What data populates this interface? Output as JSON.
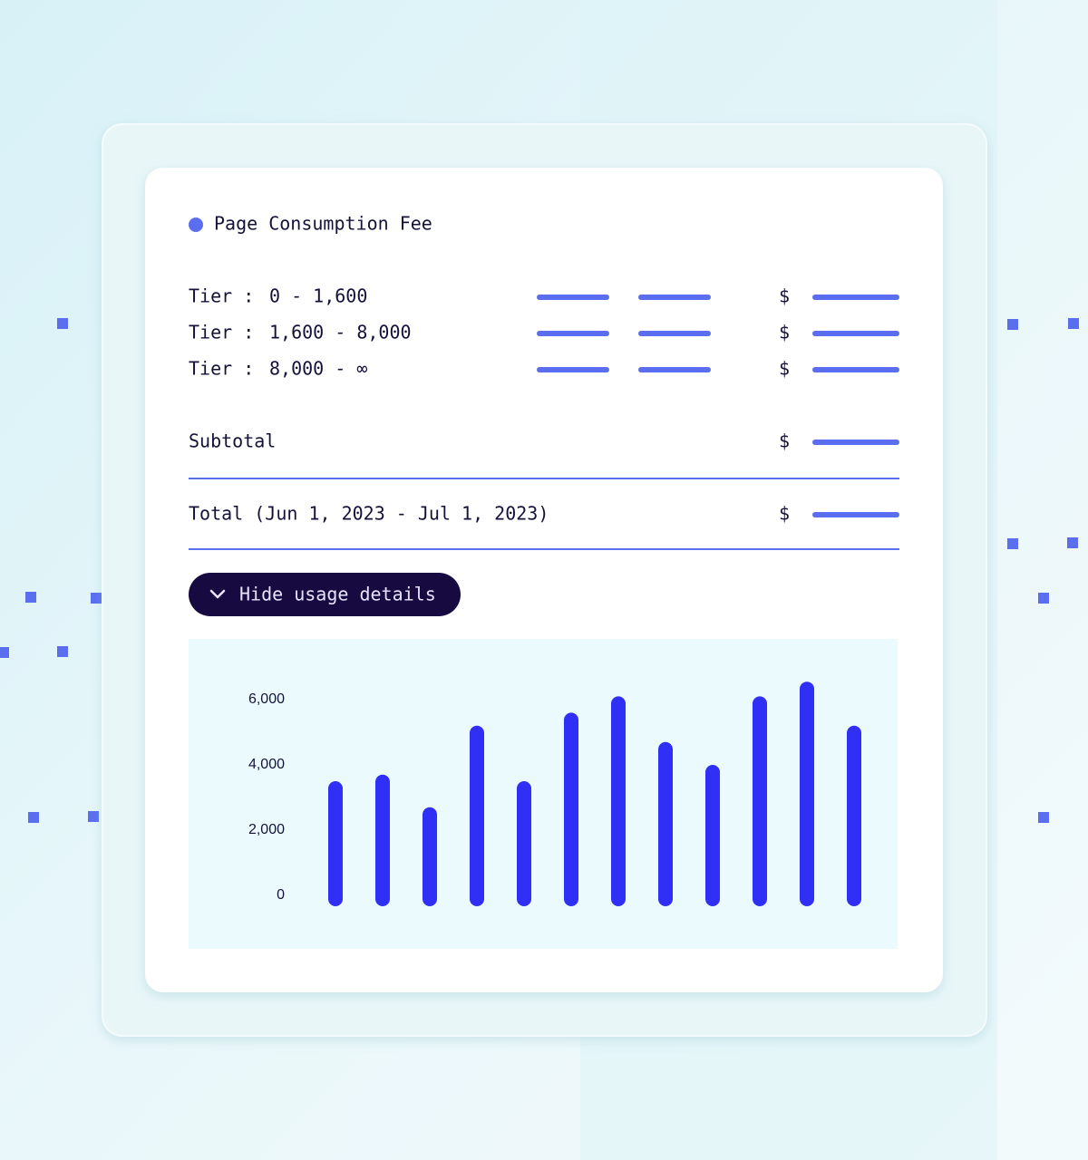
{
  "header": {
    "title": "Page Consumption Fee"
  },
  "tiers": [
    {
      "label": "Tier :",
      "range": "0 - 1,600",
      "currency": "$"
    },
    {
      "label": "Tier :",
      "range": "1,600 - 8,000",
      "currency": "$"
    },
    {
      "label": "Tier :",
      "range": "8,000 - ∞",
      "currency": "$"
    }
  ],
  "subtotal": {
    "label": "Subtotal",
    "currency": "$"
  },
  "total": {
    "label": "Total (Jun 1, 2023 - Jul 1, 2023)",
    "currency": "$"
  },
  "button": {
    "label": "Hide usage details"
  },
  "chart_data": {
    "type": "bar",
    "color": "#2f2ff5",
    "values": [
      3500,
      3700,
      2700,
      5200,
      3500,
      5600,
      6100,
      4700,
      4000,
      6100,
      6550,
      5200
    ],
    "ylim": [
      0,
      7000
    ],
    "yticks": [
      0,
      {
        "value": 2000,
        "label": "2,000"
      },
      {
        "value": 4000,
        "label": "4,000"
      },
      {
        "value": 6000,
        "label": "6,000"
      }
    ]
  }
}
